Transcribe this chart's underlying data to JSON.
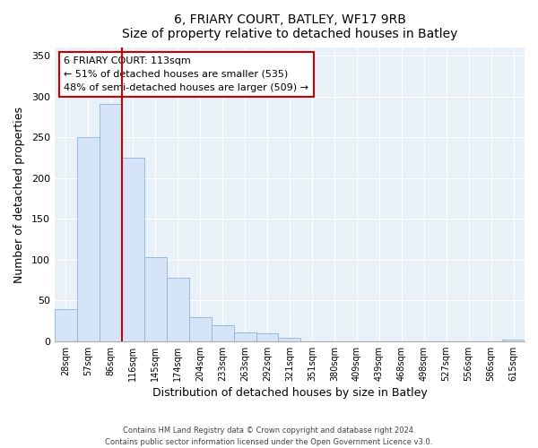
{
  "title": "6, FRIARY COURT, BATLEY, WF17 9RB",
  "subtitle": "Size of property relative to detached houses in Batley",
  "xlabel": "Distribution of detached houses by size in Batley",
  "ylabel": "Number of detached properties",
  "footer_lines": [
    "Contains HM Land Registry data © Crown copyright and database right 2024.",
    "Contains public sector information licensed under the Open Government Licence v3.0."
  ],
  "bar_labels": [
    "28sqm",
    "57sqm",
    "86sqm",
    "116sqm",
    "145sqm",
    "174sqm",
    "204sqm",
    "233sqm",
    "263sqm",
    "292sqm",
    "321sqm",
    "351sqm",
    "380sqm",
    "409sqm",
    "439sqm",
    "468sqm",
    "498sqm",
    "527sqm",
    "556sqm",
    "586sqm",
    "615sqm"
  ],
  "bar_values": [
    39,
    250,
    291,
    225,
    103,
    78,
    29,
    19,
    11,
    10,
    4,
    0,
    0,
    0,
    0,
    0,
    0,
    0,
    0,
    0,
    2
  ],
  "bar_color": "#d6e4f7",
  "bar_edge_color": "#8ab4d8",
  "marker_line_color": "#cc0000",
  "annotation_text": "6 FRIARY COURT: 113sqm\n← 51% of detached houses are smaller (535)\n48% of semi-detached houses are larger (509) →",
  "annotation_box_color": "#ffffff",
  "annotation_box_edge_color": "#cc0000",
  "ylim": [
    0,
    360
  ],
  "yticks": [
    0,
    50,
    100,
    150,
    200,
    250,
    300,
    350
  ],
  "plot_bg_color": "#e8f0f8",
  "background_color": "#ffffff",
  "grid_color": "#ffffff"
}
